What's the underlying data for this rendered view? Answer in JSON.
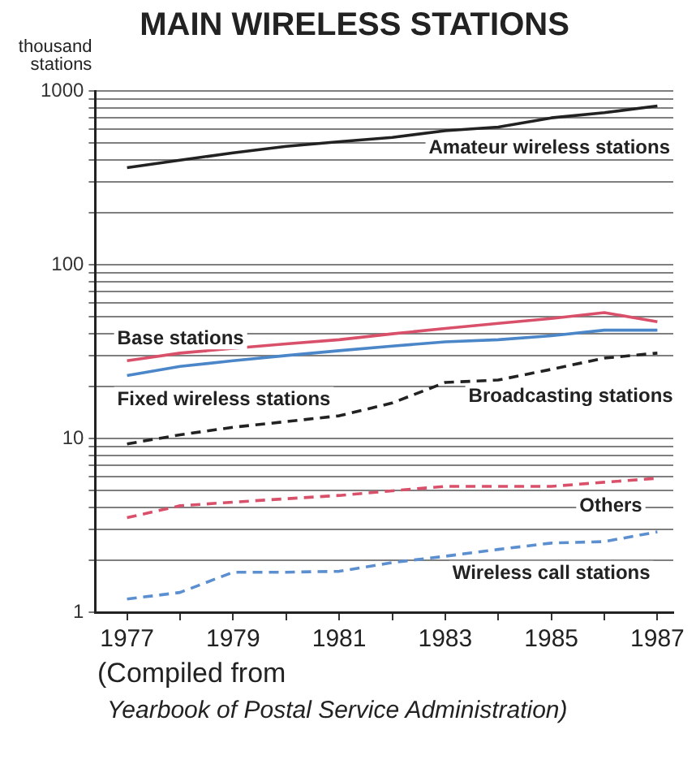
{
  "chart_data": {
    "type": "line",
    "title": "MAIN WIRELESS STATIONS",
    "ylabel": "thousand stations",
    "annotations": [
      "(Compiled from",
      "Yearbook of Postal Service Administration)"
    ],
    "x": [
      1977,
      1978,
      1979,
      1980,
      1981,
      1982,
      1983,
      1984,
      1985,
      1986,
      1987
    ],
    "series": [
      {
        "name": "Amateur wireless stations",
        "color": "#222222",
        "line_style": "solid",
        "values": [
          362,
          400,
          440,
          480,
          510,
          540,
          590,
          620,
          700,
          750,
          820
        ]
      },
      {
        "name": "Base stations",
        "color": "#d9506a",
        "line_style": "solid",
        "values": [
          28,
          31,
          33,
          35,
          37,
          40,
          43,
          46,
          49,
          53,
          47
        ]
      },
      {
        "name": "Fixed wireless stations",
        "color": "#4a86c8",
        "line_style": "solid",
        "values": [
          23,
          26,
          28,
          30,
          32,
          34,
          36,
          37,
          39,
          42,
          42
        ]
      },
      {
        "name": "Broadcasting stations",
        "color": "#222222",
        "line_style": "dashed",
        "values": [
          9.3,
          10.5,
          11.6,
          12.5,
          13.5,
          16,
          21,
          21.7,
          25,
          29,
          31
        ]
      },
      {
        "name": "Others",
        "color": "#d9506a",
        "line_style": "dashed",
        "values": [
          3.5,
          4.1,
          4.3,
          4.5,
          4.7,
          5,
          5.3,
          5.3,
          5.3,
          5.6,
          5.9
        ]
      },
      {
        "name": "Wireless call stations",
        "color": "#5b8fd0",
        "line_style": "dashed",
        "values": [
          1.19,
          1.3,
          1.7,
          1.7,
          1.72,
          1.93,
          2.1,
          2.3,
          2.5,
          2.55,
          2.9
        ]
      }
    ],
    "xlim": [
      1976.4,
      1987.3
    ],
    "xticks": [
      1977,
      {
        "value": 1978,
        "label": null
      },
      1979,
      {
        "value": 1980,
        "label": null
      },
      1981,
      {
        "value": 1982,
        "label": null
      },
      1983,
      {
        "value": 1984,
        "label": null
      },
      1985,
      {
        "value": 1986,
        "label": null
      },
      1987
    ],
    "ylim": [
      1,
      1000
    ],
    "yticks": [
      1,
      {
        "value": 2,
        "label": null
      },
      {
        "value": 3,
        "label": null
      },
      {
        "value": 4,
        "label": null
      },
      {
        "value": 5,
        "label": null
      },
      {
        "value": 6,
        "label": null
      },
      {
        "value": 7,
        "label": null
      },
      {
        "value": 8,
        "label": null
      },
      {
        "value": 9,
        "label": null
      },
      10,
      {
        "value": 20,
        "label": null
      },
      {
        "value": 30,
        "label": null
      },
      {
        "value": 40,
        "label": null
      },
      {
        "value": 50,
        "label": null
      },
      {
        "value": 60,
        "label": null
      },
      {
        "value": 70,
        "label": null
      },
      {
        "value": 80,
        "label": null
      },
      {
        "value": 90,
        "label": null
      },
      100,
      {
        "value": 200,
        "label": null
      },
      {
        "value": 300,
        "label": null
      },
      {
        "value": 400,
        "label": null
      },
      {
        "value": 500,
        "label": null
      },
      {
        "value": 600,
        "label": null
      },
      {
        "value": 700,
        "label": null
      },
      {
        "value": 800,
        "label": null
      },
      {
        "value": 900,
        "label": null
      },
      1000
    ],
    "log": true,
    "grid": "y",
    "marker": "none"
  }
}
